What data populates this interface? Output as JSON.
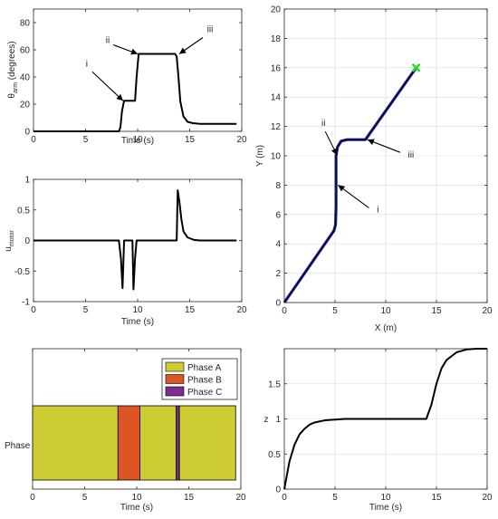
{
  "chart_data": [
    {
      "id": "theta",
      "type": "line",
      "xlabel": "Time (s)",
      "ylabel": "θ_arm (degrees)",
      "ylabel_main": "θ",
      "ylabel_sub": "arm",
      "ylabel_rest": " (degrees)",
      "xlim": [
        0,
        20
      ],
      "ylim": [
        0,
        90
      ],
      "xticks": [
        0,
        5,
        10,
        15,
        20
      ],
      "yticks": [
        0,
        20,
        40,
        60,
        80
      ],
      "grid": false,
      "color": "#000000",
      "series": [
        {
          "x": [
            0,
            8.2,
            8.35,
            8.5,
            8.7,
            9.3,
            9.75,
            9.9,
            10.1,
            13.6,
            13.75,
            13.9,
            14.1,
            14.4,
            14.8,
            15.3,
            16,
            19.5
          ],
          "y": [
            0,
            0,
            3,
            15,
            22.5,
            22.5,
            22.5,
            40,
            57,
            57,
            55,
            42,
            22,
            11,
            7,
            6,
            5.5,
            5.5
          ]
        }
      ],
      "annotations": [
        {
          "text": "i",
          "x": 8.6,
          "y": 22.5
        },
        {
          "text": "ii",
          "x": 10.0,
          "y": 57
        },
        {
          "text": "iii",
          "x": 14.0,
          "y": 57
        }
      ]
    },
    {
      "id": "umotor",
      "type": "line",
      "xlabel": "Time (s)",
      "ylabel": "u_motor",
      "ylabel_main": "u",
      "ylabel_sub": "motor",
      "ylabel_rest": "",
      "xlim": [
        0,
        20
      ],
      "ylim": [
        -1,
        1
      ],
      "xticks": [
        0,
        5,
        10,
        15,
        20
      ],
      "yticks": [
        -1,
        -0.5,
        0,
        0.5,
        1
      ],
      "ytick_labels": [
        "-1",
        "-0.5",
        "0",
        "0.5",
        "1"
      ],
      "grid": false,
      "color": "#000000",
      "series": [
        {
          "x": [
            0,
            8.2,
            8.4,
            8.55,
            8.7,
            9.0,
            9.5,
            9.6,
            9.75,
            9.9,
            10.0,
            13.75,
            13.85,
            14.0,
            14.2,
            14.4,
            14.8,
            15.4,
            16,
            19.5
          ],
          "y": [
            0,
            0,
            -0.3,
            -0.78,
            0,
            0,
            0,
            -0.8,
            -0.3,
            0,
            0,
            0,
            0.82,
            0.65,
            0.35,
            0.15,
            0.05,
            0.01,
            0,
            0
          ]
        }
      ]
    },
    {
      "id": "trajectory",
      "type": "line",
      "xlabel": "X (m)",
      "ylabel": "Y (m)",
      "xlim": [
        0,
        20
      ],
      "ylim": [
        0,
        20
      ],
      "xticks": [
        0,
        5,
        10,
        15,
        20
      ],
      "yticks": [
        0,
        2,
        4,
        6,
        8,
        10,
        12,
        14,
        16,
        18,
        20
      ],
      "grid": true,
      "color": "#1f1fa0",
      "series": [
        {
          "x": [
            0,
            4.9,
            5.05,
            5.1,
            5.1,
            5.25,
            5.6,
            6.2,
            8.0,
            13.0
          ],
          "y": [
            0,
            4.9,
            5.3,
            6.5,
            10.0,
            10.6,
            11.0,
            11.1,
            11.1,
            16.0
          ]
        }
      ],
      "goal": {
        "x": 13.0,
        "y": 16.0,
        "color": "#22dd22"
      },
      "annotations": [
        {
          "text": "ii",
          "x": 5.2,
          "y": 10.05
        },
        {
          "text": "i",
          "x": 5.3,
          "y": 8.0
        },
        {
          "text": "iii",
          "x": 8.2,
          "y": 11.1
        }
      ]
    },
    {
      "id": "phase",
      "type": "bar",
      "xlabel": "Time (s)",
      "ylabel": "Phase",
      "xlim": [
        0,
        20
      ],
      "xticks": [
        0,
        5,
        10,
        15,
        20
      ],
      "grid": false,
      "segments": [
        {
          "phase": "Phase A",
          "start": 0,
          "end": 8.2
        },
        {
          "phase": "Phase B",
          "start": 8.2,
          "end": 10.3
        },
        {
          "phase": "Phase A",
          "start": 10.3,
          "end": 13.8
        },
        {
          "phase": "Phase C",
          "start": 13.8,
          "end": 14.1
        },
        {
          "phase": "Phase A",
          "start": 14.1,
          "end": 19.5
        }
      ],
      "legend": [
        {
          "name": "Phase A",
          "color": "#cdcd33"
        },
        {
          "name": "Phase B",
          "color": "#dd5522"
        },
        {
          "name": "Phase C",
          "color": "#7a2d8a"
        }
      ],
      "legend_position": "top-right"
    },
    {
      "id": "z",
      "type": "line",
      "xlabel": "Time (s)",
      "ylabel": "z",
      "xlim": [
        0,
        20
      ],
      "ylim": [
        0,
        2
      ],
      "xticks": [
        0,
        5,
        10,
        15,
        20
      ],
      "yticks": [
        0,
        0.5,
        1,
        1.5
      ],
      "ytick_labels": [
        "0",
        "0.5",
        "1",
        "1.5"
      ],
      "grid": true,
      "color": "#000000",
      "series": [
        {
          "x": [
            0,
            0.5,
            1,
            1.5,
            2,
            2.5,
            3,
            4,
            5,
            6,
            8,
            10,
            12,
            14,
            14.5,
            15,
            15.5,
            16,
            17,
            18,
            19,
            20
          ],
          "y": [
            0,
            0.39,
            0.63,
            0.78,
            0.86,
            0.92,
            0.95,
            0.98,
            0.99,
            1.0,
            1.0,
            1.0,
            1.0,
            1.0,
            1.2,
            1.5,
            1.72,
            1.84,
            1.95,
            1.99,
            2.0,
            2.0
          ]
        }
      ]
    }
  ]
}
